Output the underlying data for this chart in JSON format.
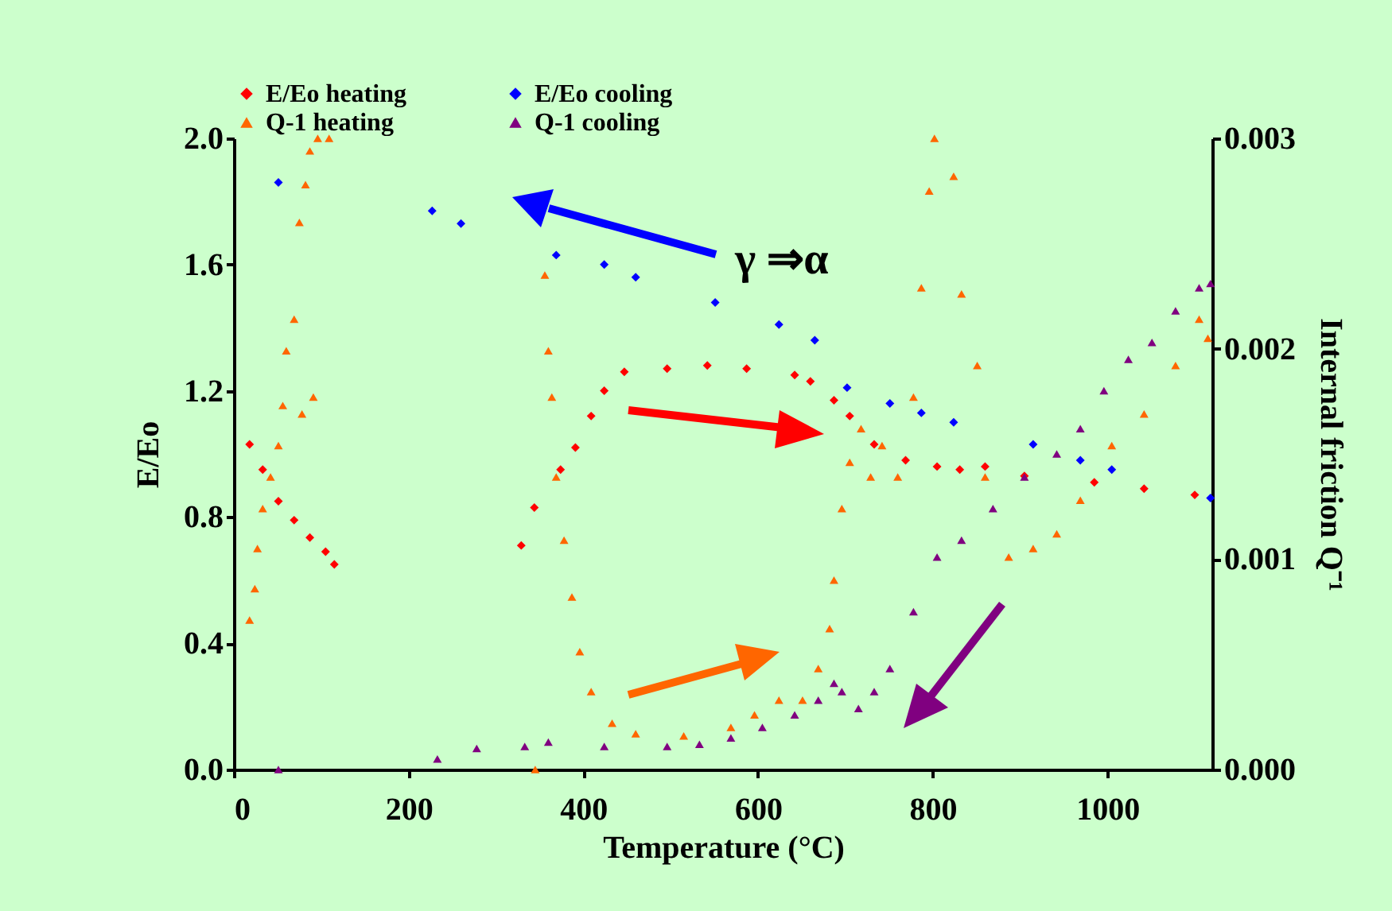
{
  "chart_data": {
    "type": "scatter",
    "xlabel": "Temperature (°C)",
    "ylabel": "E/Eo",
    "y2label": "Internal friction Q⁻¹",
    "annotations": [
      "γ ⇒α"
    ],
    "xlim": [
      0,
      1120
    ],
    "xticks": [
      0,
      200,
      400,
      600,
      800,
      1000
    ],
    "ylim": [
      0,
      2
    ],
    "yticks": [
      {
        "value": 0,
        "label": "0.0"
      },
      {
        "value": 0.4,
        "label": "0.4"
      },
      {
        "value": 0.8,
        "label": "0.8"
      },
      {
        "value": 1.2,
        "label": "1.2"
      },
      {
        "value": 1.6,
        "label": "1.6"
      },
      {
        "value": 2,
        "label": "2.0"
      }
    ],
    "y2lim": [
      0,
      0.003
    ],
    "y2ticks": [
      {
        "value": 0,
        "label": "0.000"
      },
      {
        "value": 0.001,
        "label": "0.001"
      },
      {
        "value": 0.002,
        "label": "0.002"
      },
      {
        "value": 0.003,
        "label": "0.003"
      }
    ],
    "grid": false,
    "legend": "top",
    "series": [
      {
        "name": "E/Eo heating",
        "color": "#ff0000",
        "marker": "diamond",
        "x": [
          18,
          33,
          51,
          69,
          87,
          105,
          115,
          329,
          344,
          374,
          391,
          409,
          424,
          447,
          496,
          542,
          587,
          642,
          660,
          687,
          705,
          733,
          769,
          805,
          831,
          860,
          905,
          985,
          1042,
          1100
        ],
        "values": [
          1.03,
          0.95,
          0.85,
          0.79,
          0.735,
          0.69,
          0.65,
          0.71,
          0.83,
          0.95,
          1.02,
          1.12,
          1.2,
          1.26,
          1.27,
          1.28,
          1.27,
          1.25,
          1.23,
          1.17,
          1.12,
          1.03,
          0.98,
          0.96,
          0.95,
          0.96,
          0.93,
          0.91,
          0.89,
          0.87
        ]
      },
      {
        "name": "E/Eo cooling",
        "color": "#0000ff",
        "marker": "diamond",
        "x": [
          51,
          227,
          260,
          369,
          424,
          460,
          551,
          624,
          665,
          702,
          751,
          787,
          824,
          915,
          969,
          1005,
          1118
        ],
        "values": [
          1.86,
          1.77,
          1.73,
          1.63,
          1.6,
          1.56,
          1.48,
          1.41,
          1.36,
          1.21,
          1.16,
          1.13,
          1.1,
          1.03,
          0.98,
          0.95,
          0.86
        ]
      },
      {
        "name": "Q-1 heating",
        "color": "#ff6600",
        "marker": "triangle",
        "axis": "y2",
        "x": [
          18,
          24,
          27,
          33,
          42,
          51,
          56,
          60,
          69,
          75,
          78,
          82,
          87,
          91,
          96,
          109,
          345,
          356,
          360,
          364,
          369,
          378,
          387,
          396,
          409,
          433,
          460,
          515,
          569,
          596,
          624,
          651,
          669,
          682,
          687,
          696,
          705,
          718,
          729,
          742,
          760,
          778,
          787,
          796,
          802,
          824,
          833,
          851,
          860,
          887,
          915,
          942,
          969,
          1005,
          1042,
          1078,
          1105,
          1115
        ],
        "values": [
          0.00071,
          0.00086,
          0.00105,
          0.00124,
          0.00139,
          0.00154,
          0.00173,
          0.00199,
          0.00214,
          0.0026,
          0.00169,
          0.00278,
          0.00294,
          0.00177,
          0.003,
          0.003,
          0,
          0.00235,
          0.00199,
          0.00177,
          0.00139,
          0.00109,
          0.00082,
          0.00056,
          0.00037,
          0.00022,
          0.00017,
          0.00016,
          0.0002,
          0.00026,
          0.00033,
          0.00033,
          0.00048,
          0.00067,
          0.0009,
          0.00124,
          0.00146,
          0.00162,
          0.00139,
          0.00154,
          0.00139,
          0.00177,
          0.00229,
          0.00275,
          0.003,
          0.00282,
          0.00226,
          0.00192,
          0.00139,
          0.00101,
          0.00105,
          0.00112,
          0.00128,
          0.00154,
          0.00169,
          0.00192,
          0.00214,
          0.00205
        ]
      },
      {
        "name": "Q-1 cooling",
        "color": "#800080",
        "marker": "triangle",
        "axis": "y2",
        "x": [
          51,
          233,
          278,
          333,
          360,
          424,
          496,
          533,
          569,
          605,
          642,
          669,
          687,
          696,
          715,
          733,
          751,
          778,
          805,
          833,
          869,
          905,
          942,
          969,
          996,
          1024,
          1051,
          1078,
          1105,
          1118
        ],
        "values": [
          0,
          5e-05,
          0.0001,
          0.00011,
          0.00013,
          0.00011,
          0.00011,
          0.00012,
          0.00015,
          0.0002,
          0.00026,
          0.00033,
          0.00041,
          0.00037,
          0.00029,
          0.00037,
          0.00048,
          0.00075,
          0.00101,
          0.00109,
          0.00124,
          0.00139,
          0.0015,
          0.00162,
          0.0018,
          0.00195,
          0.00203,
          0.00218,
          0.00229,
          0.00231
        ]
      }
    ]
  }
}
